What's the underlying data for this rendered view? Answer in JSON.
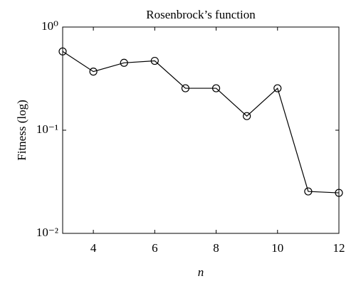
{
  "chart_data": {
    "type": "line",
    "title": "Rosenbrock’s function",
    "x_label": "n",
    "y_label": "Fitness (log)",
    "x": [
      3,
      4,
      5,
      6,
      7,
      8,
      9,
      10,
      11,
      12
    ],
    "series": [
      {
        "name": "Fitness",
        "color": "#000000",
        "values": [
          0.58,
          0.37,
          0.45,
          0.47,
          0.255,
          0.255,
          0.137,
          0.255,
          0.0255,
          0.0247
        ]
      }
    ],
    "xlim": [
      3,
      12
    ],
    "xticks": [
      4,
      6,
      8,
      10,
      12
    ],
    "ylim": [
      0.01,
      1
    ],
    "log_y": true,
    "yticks": [
      {
        "value": 0.01,
        "label": "10⁻²"
      },
      {
        "value": 0.1,
        "label": "10⁻¹"
      },
      {
        "value": 1,
        "label": "10⁰"
      }
    ],
    "marker": "open-circle",
    "grid": false
  }
}
